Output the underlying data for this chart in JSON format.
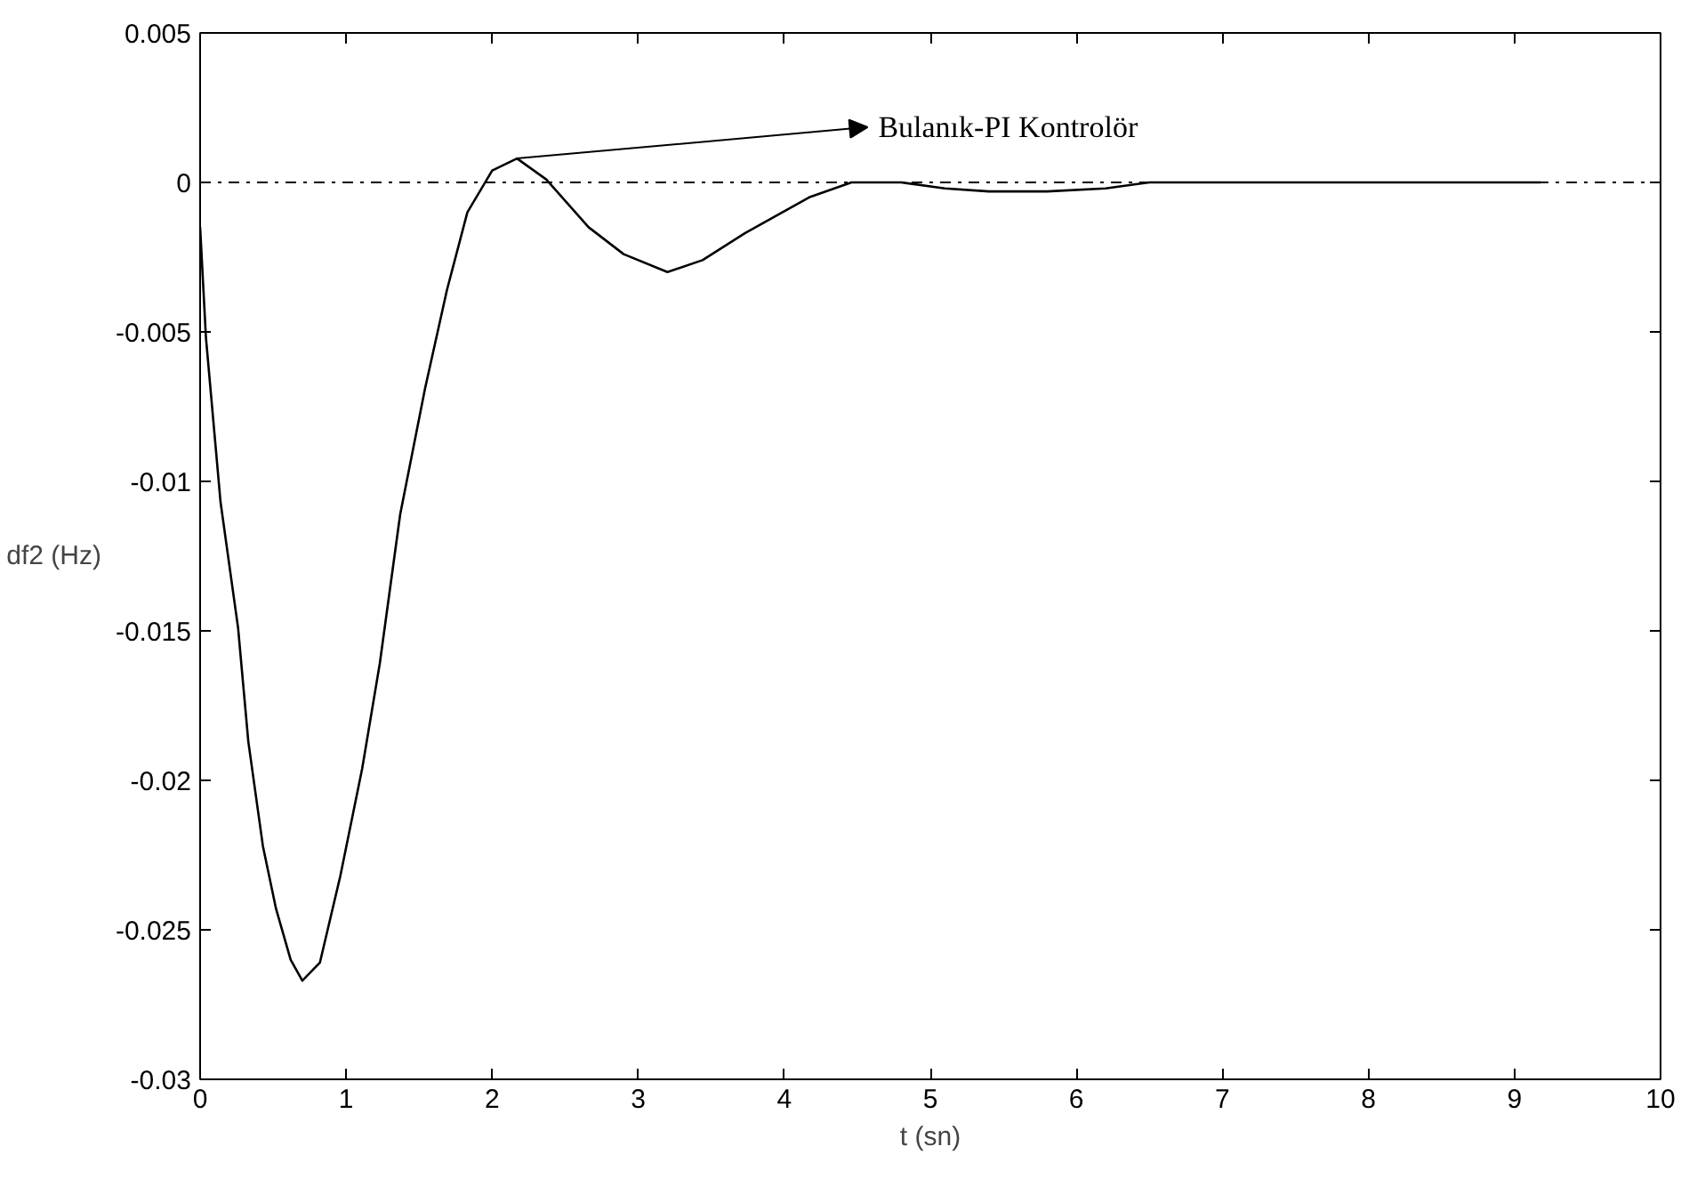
{
  "chart_data": {
    "type": "line",
    "xlabel": "t (sn)",
    "ylabel": "df2 (Hz)",
    "x": [
      0,
      0.04,
      0.14,
      0.26,
      0.33,
      0.43,
      0.52,
      0.62,
      0.7,
      0.82,
      0.96,
      1.11,
      1.23,
      1.37,
      1.54,
      1.69,
      1.83,
      2.0,
      2.17,
      2.37,
      2.66,
      2.9,
      3.2,
      3.44,
      3.73,
      4.17,
      4.46,
      4.8,
      5.1,
      5.4,
      5.8,
      6.2,
      6.5,
      7.0,
      8.0,
      9.18
    ],
    "series": [
      {
        "color": "#000000",
        "values": [
          -0.0015,
          -0.0052,
          -0.0107,
          -0.0149,
          -0.0187,
          -0.0222,
          -0.0243,
          -0.026,
          -0.0267,
          -0.0261,
          -0.0232,
          -0.0196,
          -0.0161,
          -0.0111,
          -0.0069,
          -0.0036,
          -0.001,
          0.0004,
          0.0008,
          0.0001,
          -0.0015,
          -0.0024,
          -0.003,
          -0.0026,
          -0.0017,
          -0.0005,
          0,
          0,
          -0.0002,
          -0.0003,
          -0.0003,
          -0.0002,
          0,
          0,
          0,
          0
        ]
      }
    ],
    "xlim": [
      0,
      10
    ],
    "xticks": [
      0,
      1,
      2,
      3,
      4,
      5,
      6,
      7,
      8,
      9,
      10
    ],
    "ylim": [
      -0.03,
      0.005
    ],
    "yticks": [
      0.005,
      0,
      -0.005,
      -0.01,
      -0.015,
      -0.02,
      -0.025,
      -0.03
    ],
    "ref_lines": [
      {
        "axis": "y",
        "value": 0,
        "color": "#000000",
        "line_style": "dashdot"
      }
    ],
    "annotations": [
      {
        "text": "Bulanık-PI Kontrolör",
        "x": 2.17,
        "y": 0.0008
      }
    ],
    "grid": false,
    "line_style": "solid",
    "marker": "none"
  }
}
